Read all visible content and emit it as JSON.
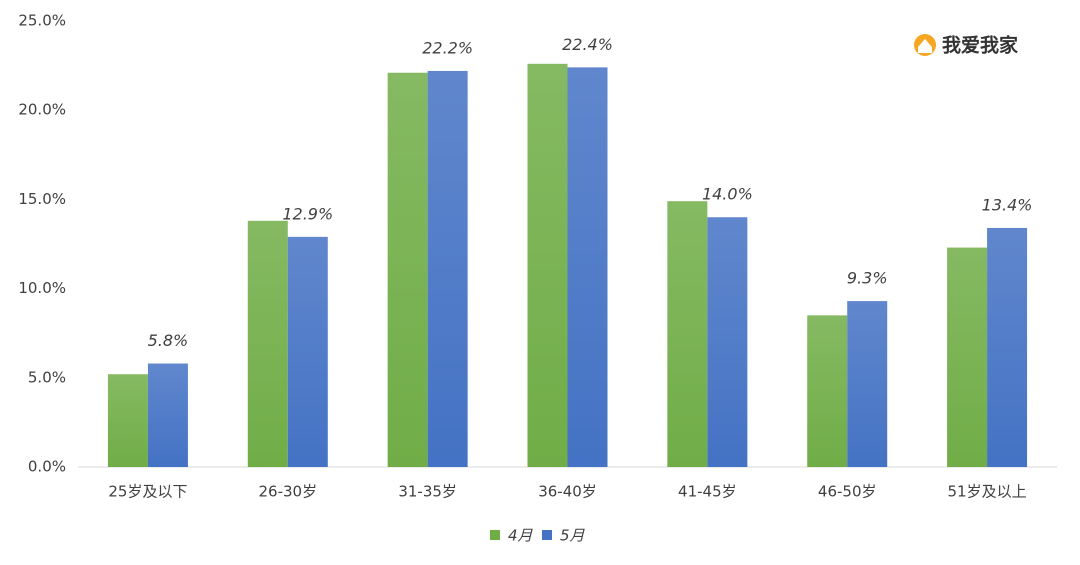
{
  "chart_data": {
    "type": "bar",
    "logo_text": "我爱我家",
    "categories": [
      "25岁及以下",
      "26-30岁",
      "31-35岁",
      "36-40岁",
      "41-45岁",
      "46-50岁",
      "51岁及以上"
    ],
    "series": [
      {
        "name": "4月",
        "color": "#70ad47",
        "values": [
          5.2,
          13.8,
          22.1,
          22.6,
          14.9,
          8.5,
          12.3
        ]
      },
      {
        "name": "5月",
        "color": "#4472c4",
        "values": [
          5.8,
          12.9,
          22.2,
          22.4,
          14.0,
          9.3,
          13.4
        ],
        "value_labels": [
          "5.8%",
          "12.9%",
          "22.2%",
          "22.4%",
          "14.0%",
          "9.3%",
          "13.4%"
        ]
      }
    ],
    "ylim": [
      0,
      25
    ],
    "yticks": [
      {
        "value": 0,
        "label": "0.0%"
      },
      {
        "value": 5,
        "label": "5.0%"
      },
      {
        "value": 10,
        "label": "10.0%"
      },
      {
        "value": 15,
        "label": "15.0%"
      },
      {
        "value": 20,
        "label": "20.0%"
      },
      {
        "value": 25,
        "label": "25.0%"
      }
    ],
    "grid": false
  }
}
